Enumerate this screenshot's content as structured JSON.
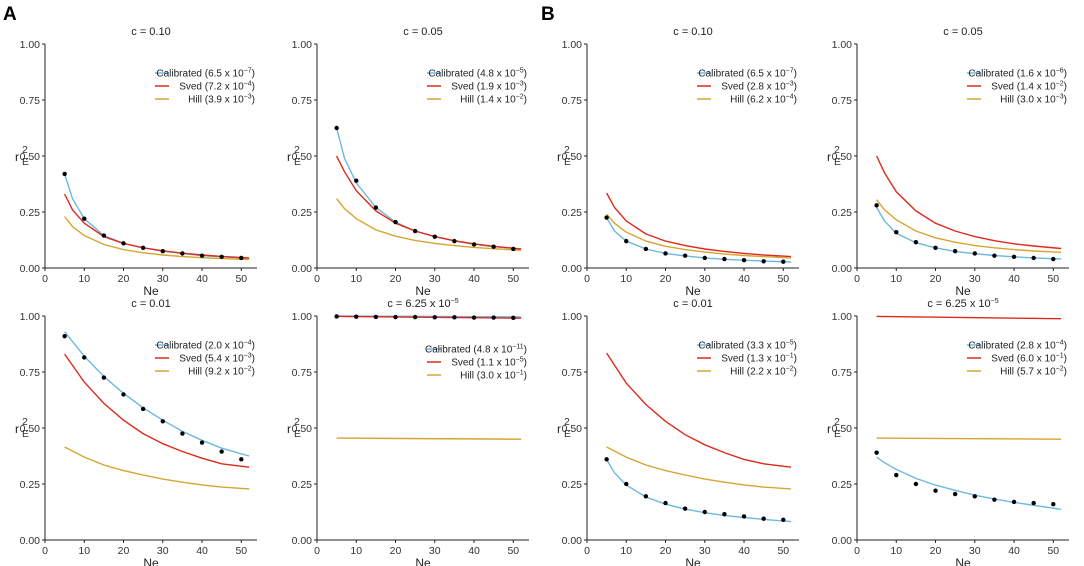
{
  "panel_labels": [
    "A",
    "B"
  ],
  "colors": {
    "calibrated": "#6cb8e0",
    "sved": "#dd2a1c",
    "hill": "#d6a531",
    "points": "#000000"
  },
  "axes": {
    "xlabel": "Ne",
    "ylabel_base": "r",
    "ylabel_sup": "2",
    "ylabel_sub": "E",
    "xticks": [
      0,
      10,
      20,
      30,
      40,
      50
    ],
    "xtick_labels": [
      "0",
      "10",
      "20",
      "30",
      "40",
      "50"
    ],
    "yticks": [
      0,
      0.25,
      0.5,
      0.75,
      1.0
    ],
    "ytick_labels": [
      "0.00",
      "0.25",
      "0.50",
      "0.75",
      "1.00"
    ],
    "xlim": [
      0,
      54
    ],
    "ylim": [
      0,
      1
    ]
  },
  "chart_data": [
    {
      "id": "A1",
      "panel": "A",
      "type": "line",
      "xlabel": "Ne",
      "ylabel": "r²E",
      "title": "c = 0.10",
      "legend": [
        "Calibrated (6.5 x 10−7)",
        "Sved (7.2 x 10−4)",
        "Hill (3.9 x 10−3)"
      ],
      "points": {
        "x": [
          5,
          10,
          15,
          20,
          25,
          30,
          35,
          40,
          45,
          50
        ],
        "y": [
          0.42,
          0.22,
          0.145,
          0.11,
          0.09,
          0.075,
          0.065,
          0.055,
          0.05,
          0.045
        ]
      },
      "series": [
        {
          "name": "Calibrated",
          "x": [
            5,
            7,
            10,
            15,
            20,
            25,
            30,
            35,
            40,
            45,
            52
          ],
          "y": [
            0.42,
            0.31,
            0.22,
            0.145,
            0.11,
            0.09,
            0.075,
            0.065,
            0.055,
            0.05,
            0.043
          ]
        },
        {
          "name": "Sved",
          "x": [
            5,
            7,
            10,
            15,
            20,
            25,
            30,
            35,
            40,
            45,
            52
          ],
          "y": [
            0.33,
            0.26,
            0.2,
            0.14,
            0.11,
            0.09,
            0.077,
            0.066,
            0.058,
            0.052,
            0.045
          ]
        },
        {
          "name": "Hill",
          "x": [
            5,
            7,
            10,
            15,
            20,
            25,
            30,
            35,
            40,
            45,
            52
          ],
          "y": [
            0.23,
            0.185,
            0.145,
            0.105,
            0.082,
            0.068,
            0.058,
            0.051,
            0.046,
            0.042,
            0.038
          ]
        }
      ]
    },
    {
      "id": "A2",
      "panel": "A",
      "type": "line",
      "xlabel": "Ne",
      "ylabel": "r²E",
      "title": "c = 0.05",
      "legend": [
        "Calibrated (4.8 x 10−5)",
        "Sved (1.9 x 10−3)",
        "Hill (1.4 x 10−2)"
      ],
      "points": {
        "x": [
          5,
          10,
          15,
          20,
          25,
          30,
          35,
          40,
          45,
          50
        ],
        "y": [
          0.625,
          0.39,
          0.27,
          0.205,
          0.165,
          0.14,
          0.12,
          0.105,
          0.095,
          0.085
        ]
      },
      "series": [
        {
          "name": "Calibrated",
          "x": [
            5,
            7,
            10,
            15,
            20,
            25,
            30,
            35,
            40,
            45,
            52
          ],
          "y": [
            0.625,
            0.49,
            0.38,
            0.27,
            0.205,
            0.165,
            0.14,
            0.12,
            0.106,
            0.095,
            0.085
          ]
        },
        {
          "name": "Sved",
          "x": [
            5,
            7,
            10,
            15,
            20,
            25,
            30,
            35,
            40,
            45,
            52
          ],
          "y": [
            0.5,
            0.43,
            0.345,
            0.255,
            0.2,
            0.165,
            0.14,
            0.122,
            0.108,
            0.097,
            0.085
          ]
        },
        {
          "name": "Hill",
          "x": [
            5,
            7,
            10,
            15,
            20,
            25,
            30,
            35,
            40,
            45,
            52
          ],
          "y": [
            0.31,
            0.265,
            0.22,
            0.17,
            0.142,
            0.123,
            0.11,
            0.1,
            0.092,
            0.086,
            0.079
          ]
        }
      ]
    },
    {
      "id": "A3",
      "panel": "A",
      "type": "line",
      "xlabel": "Ne",
      "ylabel": "r²E",
      "title": "c = 0.01",
      "legend": [
        "Calibrated (2.0 x 10−4)",
        "Sved (5.4 x 10−3)",
        "Hill (9.2 x 10−2)"
      ],
      "points": {
        "x": [
          5,
          10,
          15,
          20,
          25,
          30,
          35,
          40,
          45,
          50
        ],
        "y": [
          0.91,
          0.815,
          0.725,
          0.65,
          0.585,
          0.53,
          0.475,
          0.435,
          0.395,
          0.36
        ]
      },
      "series": [
        {
          "name": "Calibrated",
          "x": [
            5,
            10,
            15,
            20,
            25,
            30,
            35,
            40,
            45,
            52
          ],
          "y": [
            0.93,
            0.82,
            0.73,
            0.655,
            0.59,
            0.535,
            0.485,
            0.445,
            0.41,
            0.375
          ]
        },
        {
          "name": "Sved",
          "x": [
            5,
            10,
            15,
            20,
            25,
            30,
            35,
            40,
            45,
            52
          ],
          "y": [
            0.83,
            0.705,
            0.61,
            0.535,
            0.475,
            0.43,
            0.395,
            0.365,
            0.34,
            0.325
          ]
        },
        {
          "name": "Hill",
          "x": [
            5,
            10,
            15,
            20,
            25,
            30,
            35,
            40,
            45,
            52
          ],
          "y": [
            0.415,
            0.37,
            0.335,
            0.31,
            0.29,
            0.272,
            0.258,
            0.246,
            0.236,
            0.228
          ]
        }
      ]
    },
    {
      "id": "A4",
      "panel": "A",
      "type": "line",
      "xlabel": "Ne",
      "ylabel": "r²E",
      "title": "c = 6.25 x 10−5",
      "legend": [
        "Calibrated (4.8 x 10−11)",
        "Sved (1.1 x 10−5)",
        "Hill (3.0 x 10−1)"
      ],
      "points": {
        "x": [
          5,
          10,
          15,
          20,
          25,
          30,
          35,
          40,
          45,
          50
        ],
        "y": [
          0.998,
          0.997,
          0.996,
          0.995,
          0.995,
          0.994,
          0.994,
          0.993,
          0.993,
          0.992
        ]
      },
      "series": [
        {
          "name": "Calibrated",
          "x": [
            5,
            52
          ],
          "y": [
            1.0,
            0.996
          ]
        },
        {
          "name": "Sved",
          "x": [
            5,
            52
          ],
          "y": [
            0.998,
            0.99
          ]
        },
        {
          "name": "Hill",
          "x": [
            5,
            52
          ],
          "y": [
            0.455,
            0.45
          ]
        }
      ]
    },
    {
      "id": "B1",
      "panel": "B",
      "type": "line",
      "xlabel": "Ne",
      "ylabel": "r²E",
      "title": "c = 0.10",
      "legend": [
        "Calibrated (6.5 x 10−7)",
        "Sved (2.8 x 10−3)",
        "Hill (6.2 x 10−4)"
      ],
      "points": {
        "x": [
          5,
          10,
          15,
          20,
          25,
          30,
          35,
          40,
          45,
          50
        ],
        "y": [
          0.225,
          0.12,
          0.085,
          0.065,
          0.055,
          0.045,
          0.04,
          0.035,
          0.03,
          0.028
        ]
      },
      "series": [
        {
          "name": "Calibrated",
          "x": [
            5,
            7,
            10,
            15,
            20,
            25,
            30,
            35,
            40,
            45,
            52
          ],
          "y": [
            0.225,
            0.165,
            0.12,
            0.085,
            0.065,
            0.054,
            0.045,
            0.039,
            0.035,
            0.031,
            0.027
          ]
        },
        {
          "name": "Sved",
          "x": [
            5,
            7,
            10,
            15,
            20,
            25,
            30,
            35,
            40,
            45,
            52
          ],
          "y": [
            0.335,
            0.27,
            0.21,
            0.152,
            0.12,
            0.1,
            0.085,
            0.074,
            0.065,
            0.058,
            0.051
          ]
        },
        {
          "name": "Hill",
          "x": [
            5,
            7,
            10,
            15,
            20,
            25,
            30,
            35,
            40,
            45,
            52
          ],
          "y": [
            0.24,
            0.2,
            0.16,
            0.12,
            0.097,
            0.082,
            0.071,
            0.062,
            0.056,
            0.051,
            0.045
          ]
        }
      ]
    },
    {
      "id": "B2",
      "panel": "B",
      "type": "line",
      "xlabel": "Ne",
      "ylabel": "r²E",
      "title": "c = 0.05",
      "legend": [
        "Calibrated (1.6 x 10−6)",
        "Sved (1.4 x 10−2)",
        "Hill (3.0 x 10−3)"
      ],
      "points": {
        "x": [
          5,
          10,
          15,
          20,
          25,
          30,
          35,
          40,
          45,
          50
        ],
        "y": [
          0.28,
          0.16,
          0.115,
          0.09,
          0.075,
          0.065,
          0.055,
          0.05,
          0.045,
          0.04
        ]
      },
      "series": [
        {
          "name": "Calibrated",
          "x": [
            5,
            7,
            10,
            15,
            20,
            25,
            30,
            35,
            40,
            45,
            52
          ],
          "y": [
            0.27,
            0.21,
            0.155,
            0.113,
            0.09,
            0.074,
            0.064,
            0.056,
            0.05,
            0.045,
            0.04
          ]
        },
        {
          "name": "Sved",
          "x": [
            5,
            7,
            10,
            15,
            20,
            25,
            30,
            35,
            40,
            45,
            52
          ],
          "y": [
            0.5,
            0.425,
            0.34,
            0.255,
            0.2,
            0.165,
            0.14,
            0.122,
            0.108,
            0.098,
            0.087
          ]
        },
        {
          "name": "Hill",
          "x": [
            5,
            7,
            10,
            15,
            20,
            25,
            30,
            35,
            40,
            45,
            52
          ],
          "y": [
            0.305,
            0.26,
            0.215,
            0.165,
            0.135,
            0.115,
            0.1,
            0.09,
            0.082,
            0.076,
            0.07
          ]
        }
      ]
    },
    {
      "id": "B3",
      "panel": "B",
      "type": "line",
      "xlabel": "Ne",
      "ylabel": "r²E",
      "title": "c = 0.01",
      "legend": [
        "Calibrated (3.3 x 10−5)",
        "Sved (1.3 x 10−1)",
        "Hill (2.2 x 10−2)"
      ],
      "points": {
        "x": [
          5,
          10,
          15,
          20,
          25,
          30,
          35,
          40,
          45,
          50
        ],
        "y": [
          0.36,
          0.25,
          0.195,
          0.165,
          0.14,
          0.125,
          0.115,
          0.105,
          0.095,
          0.09
        ]
      },
      "series": [
        {
          "name": "Calibrated",
          "x": [
            5,
            7,
            10,
            15,
            20,
            25,
            30,
            35,
            40,
            45,
            52
          ],
          "y": [
            0.36,
            0.3,
            0.245,
            0.192,
            0.16,
            0.138,
            0.122,
            0.11,
            0.1,
            0.092,
            0.082
          ]
        },
        {
          "name": "Sved",
          "x": [
            5,
            10,
            15,
            20,
            25,
            30,
            35,
            40,
            45,
            52
          ],
          "y": [
            0.835,
            0.7,
            0.605,
            0.53,
            0.47,
            0.425,
            0.39,
            0.36,
            0.34,
            0.325
          ]
        },
        {
          "name": "Hill",
          "x": [
            5,
            10,
            15,
            20,
            25,
            30,
            35,
            40,
            45,
            52
          ],
          "y": [
            0.415,
            0.37,
            0.335,
            0.31,
            0.29,
            0.272,
            0.258,
            0.246,
            0.236,
            0.228
          ]
        }
      ]
    },
    {
      "id": "B4",
      "panel": "B",
      "type": "line",
      "xlabel": "Ne",
      "ylabel": "r²E",
      "title": "c = 6.25 x 10−5",
      "legend": [
        "Calibrated (2.8 x 10−4)",
        "Sved (6.0 x 10−1)",
        "Hill (5.7 x 10−2)"
      ],
      "points": {
        "x": [
          5,
          10,
          15,
          20,
          25,
          30,
          35,
          40,
          45,
          50
        ],
        "y": [
          0.39,
          0.29,
          0.25,
          0.22,
          0.205,
          0.195,
          0.18,
          0.17,
          0.165,
          0.16
        ]
      },
      "series": [
        {
          "name": "Calibrated",
          "x": [
            5,
            7,
            10,
            15,
            20,
            25,
            30,
            35,
            40,
            45,
            52
          ],
          "y": [
            0.37,
            0.345,
            0.315,
            0.275,
            0.245,
            0.222,
            0.2,
            0.183,
            0.168,
            0.155,
            0.137
          ]
        },
        {
          "name": "Sved",
          "x": [
            5,
            52
          ],
          "y": [
            0.998,
            0.988
          ]
        },
        {
          "name": "Hill",
          "x": [
            5,
            52
          ],
          "y": [
            0.455,
            0.45
          ]
        }
      ]
    }
  ]
}
